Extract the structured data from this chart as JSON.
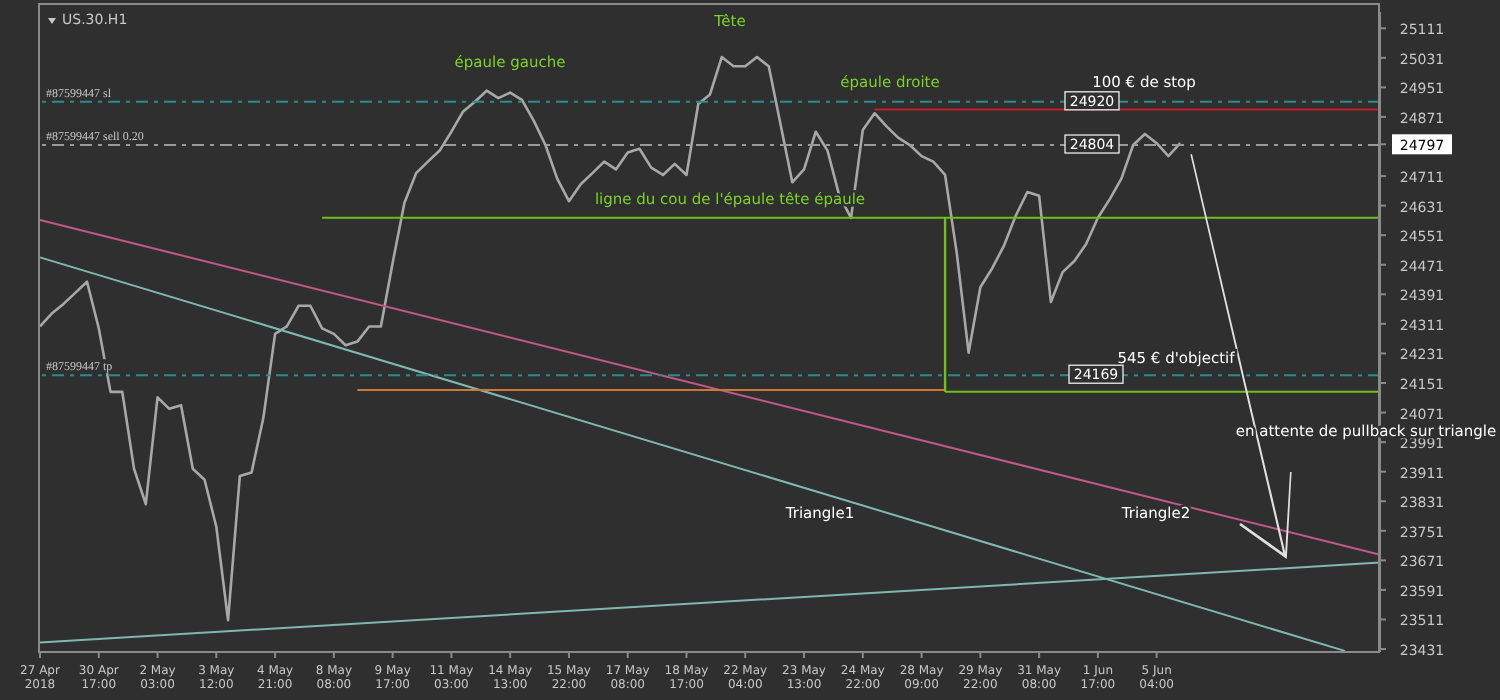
{
  "chart_data": {
    "type": "line",
    "title": "US.30.H1",
    "categories": [
      "27 Apr 2018",
      null,
      null,
      null,
      null,
      "30 Apr 17:00",
      null,
      null,
      null,
      null,
      "2 May 03:00",
      null,
      null,
      null,
      null,
      "3 May 12:00",
      null,
      null,
      null,
      null,
      "4 May 21:00",
      null,
      null,
      null,
      null,
      "8 May 08:00",
      null,
      null,
      null,
      null,
      "9 May 17:00",
      null,
      null,
      null,
      null,
      "11 May 03:00",
      null,
      null,
      null,
      null,
      "14 May 13:00",
      null,
      null,
      null,
      null,
      "15 May 22:00",
      null,
      null,
      null,
      null,
      "17 May 08:00",
      null,
      null,
      null,
      null,
      "18 May 17:00",
      null,
      null,
      null,
      null,
      "22 May 04:00",
      null,
      null,
      null,
      null,
      "23 May 13:00",
      null,
      null,
      null,
      null,
      "24 May 22:00",
      null,
      null,
      null,
      null,
      "28 May 09:00",
      null,
      null,
      null,
      null,
      "29 May 22:00",
      null,
      null,
      null,
      null,
      "31 May 08:00",
      null,
      null,
      null,
      null,
      "1 Jun 17:00",
      null,
      null,
      null,
      null,
      "5 Jun 04:00",
      null,
      null,
      null,
      null,
      null,
      null,
      null,
      null,
      null,
      null,
      null,
      null,
      null,
      null,
      null,
      null,
      null,
      null,
      null
    ],
    "series": [
      {
        "color": "#a8a8a8",
        "values": [
          24304,
          24339,
          24365,
          24395,
          24425,
          24299,
          24127,
          24127,
          23919,
          23823,
          24112,
          24081,
          24091,
          23919,
          23889,
          23762,
          23509,
          23899,
          23909,
          24056,
          24284,
          24304,
          24360,
          24360,
          24299,
          24284,
          24253,
          24263,
          24304,
          24304,
          24476,
          24638,
          24719,
          24750,
          24780,
          24831,
          24886,
          24912,
          24942,
          24922,
          24937,
          24917,
          24861,
          24795,
          24704,
          24643,
          24689,
          24719,
          24750,
          24729,
          24775,
          24785,
          24734,
          24714,
          24744,
          24714,
          24906,
          24932,
          25033,
          25008,
          25008,
          25033,
          25008,
          24851,
          24694,
          24729,
          24831,
          24780,
          24658,
          24598,
          24836,
          24881,
          24846,
          24815,
          24795,
          24765,
          24750,
          24714,
          24501,
          24233,
          24410,
          24461,
          24522,
          24603,
          24668,
          24658,
          24370,
          24451,
          24481,
          24527,
          24598,
          24648,
          24704,
          24795,
          24825,
          24800,
          24765,
          24800,
          null,
          null,
          null,
          null,
          null,
          null,
          null,
          null,
          null,
          null,
          null,
          null,
          null,
          null,
          null,
          null,
          null
        ]
      },
      {
        "color": "#c0588a",
        "values": [
          24592,
          null,
          null,
          null,
          null,
          null,
          null,
          null,
          null,
          null,
          null,
          null,
          null,
          null,
          null,
          null,
          null,
          null,
          null,
          null,
          null,
          null,
          null,
          null,
          null,
          null,
          null,
          null,
          null,
          null,
          null,
          null,
          null,
          null,
          null,
          null,
          null,
          null,
          null,
          null,
          null,
          null,
          null,
          null,
          null,
          null,
          null,
          null,
          null,
          null,
          null,
          null,
          null,
          null,
          null,
          null,
          null,
          null,
          null,
          null,
          null,
          null,
          null,
          null,
          null,
          null,
          null,
          null,
          null,
          null,
          null,
          null,
          null,
          null,
          null,
          null,
          null,
          null,
          null,
          null,
          null,
          null,
          null,
          null,
          null,
          null,
          null,
          null,
          null,
          null,
          null,
          null,
          null,
          null,
          null,
          null,
          null,
          null,
          null,
          null,
          null,
          null,
          null,
          null,
          null,
          null,
          null,
          null,
          null,
          null,
          null,
          null,
          null,
          null,
          23686
        ]
      },
      {
        "color": "#7fb8b0",
        "values": [
          24491,
          null,
          null,
          null,
          null,
          null,
          null,
          null,
          null,
          null,
          null,
          null,
          null,
          null,
          null,
          null,
          null,
          null,
          null,
          null,
          null,
          null,
          null,
          null,
          null,
          null,
          null,
          null,
          null,
          null,
          null,
          null,
          null,
          null,
          null,
          null,
          null,
          null,
          null,
          null,
          null,
          null,
          null,
          null,
          null,
          null,
          null,
          null,
          null,
          null,
          null,
          null,
          null,
          null,
          null,
          null,
          null,
          null,
          null,
          null,
          null,
          null,
          null,
          null,
          null,
          null,
          null,
          null,
          null,
          null,
          null,
          null,
          null,
          null,
          null,
          null,
          null,
          null,
          null,
          null,
          null,
          null,
          null,
          null,
          null,
          null,
          null,
          null,
          null,
          null,
          null,
          null,
          null,
          null,
          null,
          null,
          null,
          null,
          null,
          null,
          null,
          null,
          null,
          null,
          null,
          null,
          null,
          null,
          null,
          null,
          null,
          23426,
          null,
          null,
          null
        ]
      },
      {
        "color": "#7fb8b0",
        "values": [
          23449,
          null,
          null,
          null,
          null,
          null,
          null,
          null,
          null,
          null,
          null,
          null,
          null,
          null,
          null,
          null,
          null,
          null,
          null,
          null,
          null,
          null,
          null,
          null,
          null,
          null,
          null,
          null,
          null,
          null,
          null,
          null,
          null,
          null,
          null,
          null,
          null,
          null,
          null,
          null,
          null,
          null,
          null,
          null,
          null,
          null,
          null,
          null,
          null,
          null,
          null,
          null,
          null,
          null,
          null,
          null,
          null,
          null,
          null,
          null,
          null,
          null,
          null,
          null,
          null,
          null,
          null,
          null,
          null,
          null,
          null,
          null,
          null,
          null,
          null,
          null,
          null,
          null,
          null,
          null,
          null,
          null,
          null,
          null,
          null,
          null,
          null,
          null,
          null,
          null,
          null,
          null,
          null,
          null,
          null,
          null,
          null,
          null,
          null,
          null,
          null,
          null,
          null,
          null,
          null,
          null,
          null,
          null,
          null,
          null,
          null,
          null,
          null,
          null,
          23665
        ]
      },
      {
        "color": "#6fbf1f",
        "values": [
          null,
          null,
          null,
          null,
          null,
          null,
          null,
          null,
          null,
          null,
          null,
          null,
          null,
          null,
          null,
          null,
          null,
          null,
          null,
          null,
          null,
          null,
          null,
          null,
          24598,
          null,
          null,
          null,
          null,
          null,
          null,
          null,
          null,
          null,
          null,
          null,
          null,
          null,
          null,
          null,
          null,
          null,
          null,
          null,
          null,
          null,
          null,
          null,
          null,
          null,
          null,
          null,
          null,
          null,
          null,
          null,
          null,
          null,
          null,
          null,
          null,
          null,
          null,
          null,
          null,
          null,
          null,
          null,
          null,
          null,
          null,
          null,
          null,
          null,
          null,
          null,
          null,
          null,
          null,
          null,
          null,
          null,
          null,
          null,
          null,
          null,
          null,
          null,
          null,
          null,
          null,
          null,
          null,
          null,
          null,
          null,
          null,
          null,
          null,
          null,
          null,
          null,
          null,
          null,
          null,
          null,
          null,
          null,
          null,
          null,
          null,
          null,
          null,
          null,
          24598
        ]
      },
      {
        "color": "#c0202a",
        "values": [
          null,
          null,
          null,
          null,
          null,
          null,
          null,
          null,
          null,
          null,
          null,
          null,
          null,
          null,
          null,
          null,
          null,
          null,
          null,
          null,
          null,
          null,
          null,
          null,
          null,
          null,
          null,
          null,
          null,
          null,
          null,
          null,
          null,
          null,
          null,
          null,
          null,
          null,
          null,
          null,
          null,
          null,
          null,
          null,
          null,
          null,
          null,
          null,
          null,
          null,
          null,
          null,
          null,
          null,
          null,
          null,
          null,
          null,
          null,
          null,
          null,
          null,
          null,
          null,
          null,
          null,
          null,
          null,
          null,
          null,
          null,
          24891,
          null,
          null,
          null,
          null,
          null,
          null,
          null,
          null,
          null,
          null,
          null,
          null,
          null,
          null,
          null,
          null,
          null,
          null,
          null,
          null,
          null,
          null,
          null,
          null,
          null,
          null,
          null,
          null,
          null,
          null,
          null,
          null,
          null,
          null,
          null,
          null,
          null,
          null,
          null,
          null,
          null,
          null,
          24891
        ]
      },
      {
        "color": "#c8783a",
        "values": [
          null,
          null,
          null,
          null,
          null,
          null,
          null,
          null,
          null,
          null,
          null,
          null,
          null,
          null,
          null,
          null,
          null,
          null,
          null,
          null,
          null,
          null,
          null,
          null,
          null,
          null,
          null,
          24132,
          null,
          null,
          null,
          null,
          null,
          null,
          null,
          null,
          null,
          null,
          null,
          null,
          null,
          null,
          null,
          null,
          null,
          null,
          null,
          null,
          null,
          null,
          null,
          null,
          null,
          null,
          null,
          null,
          null,
          null,
          null,
          null,
          null,
          null,
          null,
          null,
          null,
          null,
          null,
          null,
          null,
          null,
          null,
          null,
          null,
          null,
          null,
          null,
          null,
          24132,
          null,
          null,
          null,
          null,
          null,
          null,
          null,
          null,
          null,
          null,
          null,
          null,
          null,
          null,
          null,
          null,
          null,
          null,
          null,
          null,
          null,
          null,
          null,
          null,
          null,
          null,
          null,
          null,
          null,
          null,
          null,
          null,
          null,
          null,
          null,
          null,
          null
        ]
      },
      {
        "color": "#6fbf1f",
        "values": [
          null,
          null,
          null,
          null,
          null,
          null,
          null,
          null,
          null,
          null,
          null,
          null,
          null,
          null,
          null,
          null,
          null,
          null,
          null,
          null,
          null,
          null,
          null,
          null,
          null,
          null,
          null,
          null,
          null,
          null,
          null,
          null,
          null,
          null,
          null,
          null,
          null,
          null,
          null,
          null,
          null,
          null,
          null,
          null,
          null,
          null,
          null,
          null,
          null,
          null,
          null,
          null,
          null,
          null,
          null,
          null,
          null,
          null,
          null,
          null,
          null,
          null,
          null,
          null,
          null,
          null,
          null,
          null,
          null,
          null,
          null,
          null,
          null,
          null,
          null,
          null,
          null,
          24127,
          null,
          null,
          null,
          null,
          null,
          null,
          null,
          null,
          null,
          null,
          null,
          null,
          null,
          null,
          null,
          null,
          null,
          null,
          null,
          null,
          null,
          null,
          null,
          null,
          null,
          null,
          null,
          null,
          null,
          null,
          null,
          null,
          null,
          null,
          null,
          null,
          24127
        ]
      }
    ],
    "ylim": [
      23423,
      25155
    ],
    "yticks": [
      25111,
      25031,
      24951,
      24871,
      {
        "value": 24797,
        "label": "24797"
      },
      24711,
      24631,
      24551,
      24471,
      24391,
      24311,
      24231,
      24151,
      24071,
      23991,
      23911,
      23831,
      23751,
      23671,
      23591,
      23511,
      23431
    ],
    "ref_lines": [
      {
        "axis": "y",
        "value": 24912,
        "label": "#87599447 sl",
        "color": "#2a8c8c",
        "line_style": "dashed"
      },
      {
        "axis": "y",
        "value": 24795,
        "label": "#87599447 sell 0.20",
        "color": "#9a9a9a",
        "line_style": "dashed"
      },
      {
        "axis": "y",
        "value": 24172,
        "label": "#87599447 tp",
        "color": "#2a8c8c",
        "line_style": "dashed"
      }
    ],
    "annotations": [
      "épaule gauche",
      "Tête",
      "épaule droite",
      "100 € de stop",
      "ligne du cou de l'épaule tête épaule",
      "545 € d'objectif",
      "Triangle1",
      "Triangle2",
      "en attente de pullback sur triangle",
      "24920",
      "24804",
      "24169"
    ],
    "grid": false,
    "marker": "none"
  }
}
